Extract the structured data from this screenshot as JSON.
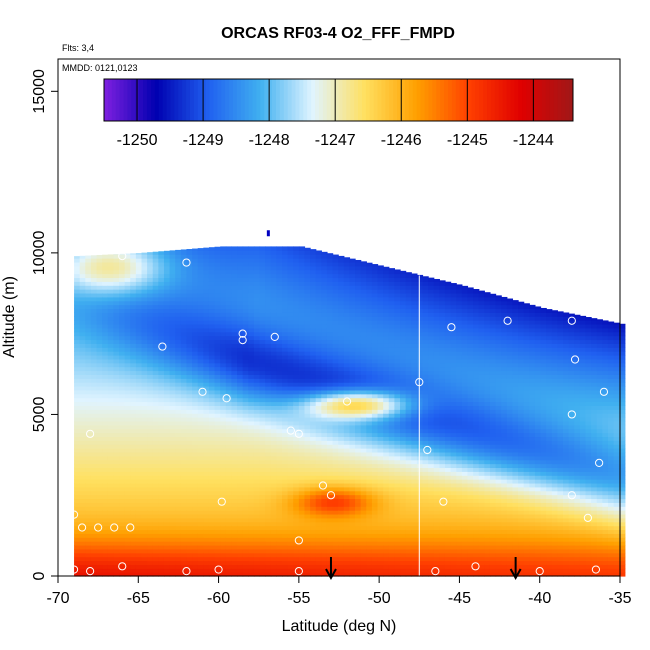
{
  "chart_data": {
    "type": "heatmap",
    "title": "ORCAS RF03-4 O2_FFF_FMPD",
    "annotations": [
      "Flts: 3,4",
      "MMDD: 0121,0123"
    ],
    "xlabel": "Latitude (deg N)",
    "ylabel": "Altitude (m)",
    "xlim": [
      -70,
      -35
    ],
    "ylim": [
      0,
      16000
    ],
    "x_ticks": [
      -70,
      -65,
      -60,
      -55,
      -50,
      -45,
      -40,
      -35
    ],
    "y_ticks": [
      0,
      5000,
      10000,
      15000
    ],
    "colorbar": {
      "range": [
        -1250.5,
        -1243.4
      ],
      "ticks": [
        -1250,
        -1249,
        -1248,
        -1247,
        -1246,
        -1245,
        -1244
      ],
      "colors": [
        "#7f20e0",
        "#0000b0",
        "#2060f0",
        "#40b0f0",
        "#e0f4ff",
        "#ffe060",
        "#ffa000",
        "#ff4000",
        "#e00000",
        "#a01818"
      ]
    },
    "data_top": [
      [
        -69,
        9900
      ],
      [
        -65,
        10000
      ],
      [
        -60,
        10200
      ],
      [
        -55,
        10200
      ],
      [
        -50,
        9600
      ],
      [
        -45,
        9000
      ],
      [
        -40,
        8300
      ],
      [
        -35,
        7800
      ]
    ],
    "data_bottom": [
      [
        -69,
        0
      ],
      [
        -36.5,
        0
      ]
    ],
    "tracks": [
      {
        "lat": -69,
        "alt": 200
      },
      {
        "lat": -68,
        "alt": 150
      },
      {
        "lat": -66,
        "alt": 300
      },
      {
        "lat": -62,
        "alt": 150
      },
      {
        "lat": -60,
        "alt": 200
      },
      {
        "lat": -55,
        "alt": 150
      },
      {
        "lat": -46.5,
        "alt": 150
      },
      {
        "lat": -44,
        "alt": 300
      },
      {
        "lat": -40,
        "alt": 150
      },
      {
        "lat": -36.5,
        "alt": 200
      },
      {
        "lat": -69,
        "alt": 1900
      },
      {
        "lat": -68.5,
        "alt": 1500
      },
      {
        "lat": -67.5,
        "alt": 1500
      },
      {
        "lat": -66.5,
        "alt": 1500
      },
      {
        "lat": -65.5,
        "alt": 1500
      },
      {
        "lat": -59.8,
        "alt": 2300
      },
      {
        "lat": -55,
        "alt": 1100
      },
      {
        "lat": -53,
        "alt": 2500
      },
      {
        "lat": -46,
        "alt": 2300
      },
      {
        "lat": -38,
        "alt": 2500
      },
      {
        "lat": -37,
        "alt": 1800
      },
      {
        "lat": -68,
        "alt": 4400
      },
      {
        "lat": -55.5,
        "alt": 4500
      },
      {
        "lat": -55,
        "alt": 4400
      },
      {
        "lat": -52,
        "alt": 5400
      },
      {
        "lat": -47,
        "alt": 3900
      },
      {
        "lat": -36.3,
        "alt": 3500
      },
      {
        "lat": -61,
        "alt": 5700
      },
      {
        "lat": -59.5,
        "alt": 5500
      },
      {
        "lat": -47.5,
        "alt": 6000
      },
      {
        "lat": -38,
        "alt": 5000
      },
      {
        "lat": -36,
        "alt": 5700
      },
      {
        "lat": -53.5,
        "alt": 2800
      },
      {
        "lat": -63.5,
        "alt": 7100
      },
      {
        "lat": -58.5,
        "alt": 7500
      },
      {
        "lat": -58.5,
        "alt": 7300
      },
      {
        "lat": -56.5,
        "alt": 7400
      },
      {
        "lat": -45.5,
        "alt": 7700
      },
      {
        "lat": -42,
        "alt": 7900
      },
      {
        "lat": -38,
        "alt": 7900
      },
      {
        "lat": -37.8,
        "alt": 6700
      },
      {
        "lat": -66,
        "alt": 9900
      },
      {
        "lat": -62,
        "alt": 9700
      }
    ],
    "vertical_line_lat": -47.5,
    "arrows_lat": [
      -53,
      -41.5
    ]
  }
}
